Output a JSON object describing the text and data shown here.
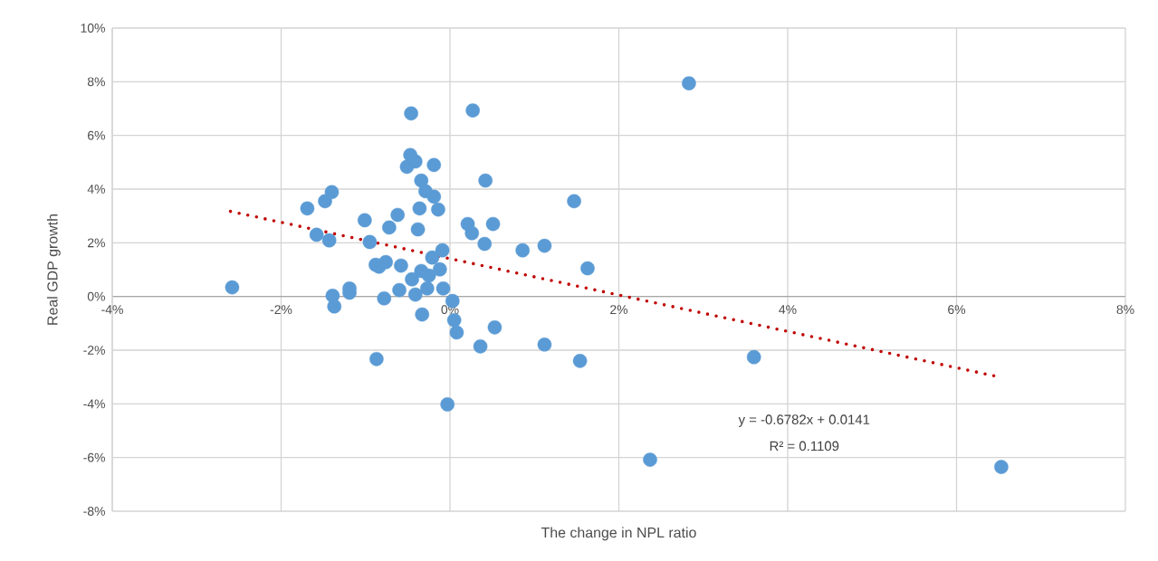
{
  "chart_data": {
    "type": "scatter",
    "xlabel": "The change in NPL ratio",
    "ylabel": "Real GDP growth",
    "xlim": [
      -4,
      8
    ],
    "ylim": [
      -8,
      10
    ],
    "xticks": [
      {
        "value": -4,
        "label": "-4%"
      },
      {
        "value": -2,
        "label": "-2%"
      },
      {
        "value": 0,
        "label": "0%"
      },
      {
        "value": 2,
        "label": "2%"
      },
      {
        "value": 4,
        "label": "4%"
      },
      {
        "value": 6,
        "label": "6%"
      },
      {
        "value": 8,
        "label": "8%"
      }
    ],
    "yticks": [
      {
        "value": -8,
        "label": "-8%"
      },
      {
        "value": -6,
        "label": "-6%"
      },
      {
        "value": -4,
        "label": "-4%"
      },
      {
        "value": -2,
        "label": "-2%"
      },
      {
        "value": 0,
        "label": "0%"
      },
      {
        "value": 2,
        "label": "2%"
      },
      {
        "value": 4,
        "label": "4%"
      },
      {
        "value": 6,
        "label": "6%"
      },
      {
        "value": 8,
        "label": "8%"
      },
      {
        "value": 10,
        "label": "10%"
      }
    ],
    "grid": true,
    "marker": "circle",
    "series": [
      {
        "color": "#5b9bd5",
        "x": [
          -2.58,
          -1.69,
          -1.48,
          -1.4,
          -1.58,
          -1.43,
          -1.39,
          -1.37,
          -1.19,
          -1.19,
          -1.01,
          -0.95,
          -0.87,
          -0.84,
          -0.76,
          -0.78,
          -0.72,
          -0.62,
          -0.58,
          -0.6,
          -0.51,
          -0.47,
          -0.46,
          -0.41,
          -0.45,
          -0.41,
          -0.38,
          -0.36,
          -0.34,
          -0.33,
          -0.29,
          -0.27,
          -0.25,
          -0.21,
          -0.19,
          -0.19,
          -0.14,
          -0.12,
          -0.09,
          -0.08,
          0.03,
          0.05,
          0.08,
          -0.03,
          0.27,
          0.21,
          0.26,
          0.36,
          0.41,
          0.42,
          0.51,
          0.53,
          0.86,
          1.12,
          1.12,
          1.47,
          1.54,
          1.63,
          2.83,
          2.37,
          3.6,
          6.53,
          -0.34,
          -0.88
        ],
        "values": [
          0.34,
          3.28,
          3.55,
          3.89,
          2.3,
          2.09,
          0.03,
          -0.37,
          0.3,
          0.14,
          2.84,
          2.03,
          -2.33,
          1.11,
          1.28,
          -0.07,
          2.57,
          3.04,
          1.15,
          0.24,
          4.83,
          5.27,
          6.82,
          5.03,
          0.64,
          0.07,
          2.5,
          3.28,
          4.32,
          -0.67,
          3.92,
          0.3,
          0.78,
          1.45,
          4.9,
          3.72,
          3.24,
          1.01,
          1.72,
          0.3,
          -0.17,
          -0.88,
          -1.34,
          -4.02,
          6.93,
          2.7,
          2.36,
          -1.86,
          1.96,
          4.32,
          2.7,
          -1.15,
          1.72,
          1.89,
          -1.79,
          3.55,
          -2.4,
          1.05,
          7.94,
          -6.08,
          -2.26,
          -6.35,
          0.95,
          1.18
        ]
      },
      {
        "type": "line",
        "color": "#c00000",
        "line_style": "dotted",
        "marker": "none",
        "x": [
          -2.6,
          6.45
        ],
        "values": [
          3.17,
          -2.96
        ]
      }
    ],
    "annotations": [
      "y = -0.6782x + 0.0141",
      "R² = 0.1109"
    ]
  }
}
